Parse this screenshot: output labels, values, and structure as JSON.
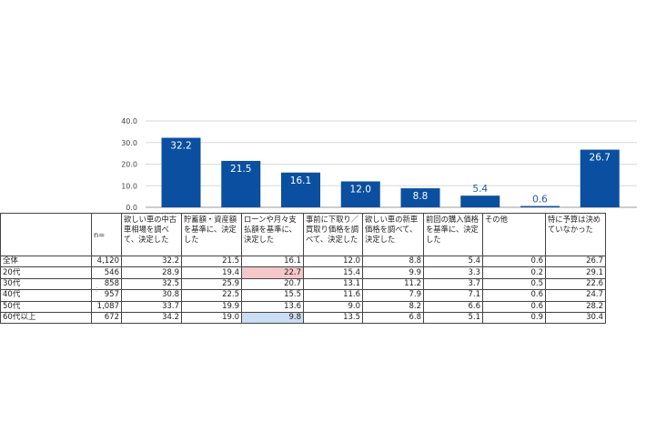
{
  "chart_data": {
    "type": "bar",
    "ylim": [
      0,
      40
    ],
    "yticks": [
      "0.0",
      "10.0",
      "20.0",
      "30.0",
      "40.0"
    ],
    "categories": [
      "欲しい車の中古車相場を調べて、決定した",
      "貯蓄額・資産額を基準に、決定した",
      "ローンや月々支払額を基準に、決定した",
      "事前に下取り／買取り価格を調べて、決定した",
      "欲しい車の新車価格を調べて、決定した",
      "前回の購入価格を基準に、決定した",
      "その他",
      "特に予算は決めていなかった"
    ],
    "values": [
      32.2,
      21.5,
      16.1,
      12.0,
      8.8,
      5.4,
      0.6,
      26.7
    ],
    "value_labels": [
      "32.2",
      "21.5",
      "16.1",
      "12.0",
      "8.8",
      "5.4",
      "0.6",
      "26.7"
    ],
    "bar_color": "#0b4fa0",
    "grid": true
  },
  "table": {
    "n_header": "n=",
    "headers": [
      "欲しい車の中古車相場を調べて、決定した",
      "貯蓄額・資産額を基準に、決定した",
      "ローンや月々支払額を基準に、決定した",
      "事前に下取り／買取り価格を調べて、決定した",
      "欲しい車の新車価格を調べて、決定した",
      "前回の購入価格を基準に、決定した",
      "その他",
      "特に予算は決めていなかった"
    ],
    "rows": [
      {
        "label": "全体",
        "n": "4,120",
        "values": [
          "32.2",
          "21.5",
          "16.1",
          "12.0",
          "8.8",
          "5.4",
          "0.6",
          "26.7"
        ]
      },
      {
        "label": "20代",
        "n": "546",
        "values": [
          "28.9",
          "19.4",
          "22.7",
          "15.4",
          "9.9",
          "3.3",
          "0.2",
          "29.1"
        ]
      },
      {
        "label": "30代",
        "n": "858",
        "values": [
          "32.5",
          "25.9",
          "20.7",
          "13.1",
          "11.2",
          "3.7",
          "0.5",
          "22.6"
        ]
      },
      {
        "label": "40代",
        "n": "957",
        "values": [
          "30.8",
          "22.5",
          "15.5",
          "11.6",
          "7.9",
          "7.1",
          "0.6",
          "24.7"
        ]
      },
      {
        "label": "50代",
        "n": "1,087",
        "values": [
          "33.7",
          "19.9",
          "13.6",
          "9.0",
          "8.2",
          "6.6",
          "0.6",
          "28.2"
        ]
      },
      {
        "label": "60代以上",
        "n": "672",
        "values": [
          "34.2",
          "19.0",
          "9.8",
          "13.5",
          "6.8",
          "5.1",
          "0.9",
          "30.4"
        ]
      }
    ],
    "highlight_high_color": "#f4c7c9",
    "highlight_low_color": "#c9ddf3"
  }
}
